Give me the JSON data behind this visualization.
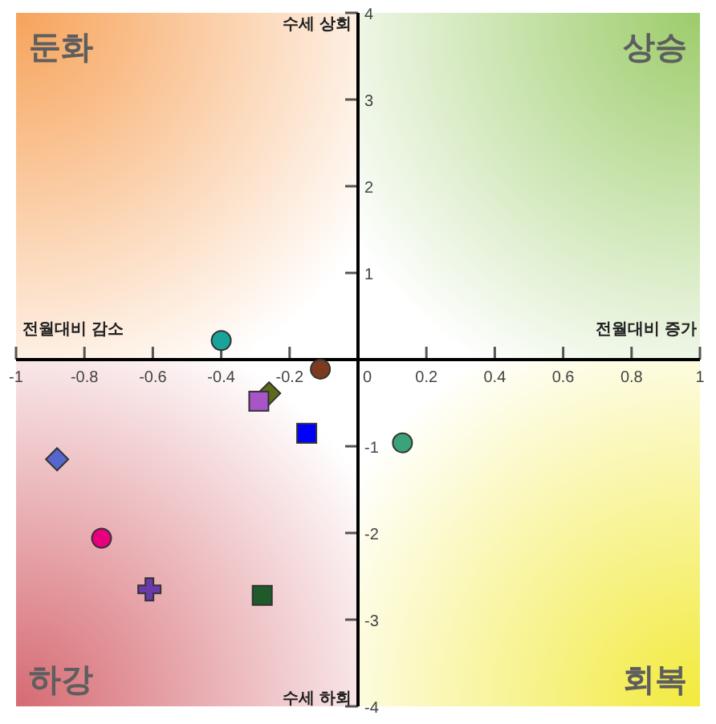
{
  "chart_data": {
    "type": "scatter",
    "annotations": [
      "둔화",
      "상승",
      "하강",
      "회복",
      "수세 상회",
      "수세 하회",
      "전월대비 감소",
      "전월대비 증가"
    ],
    "xlim": [
      -1,
      1
    ],
    "xticks": [
      -1,
      -0.8,
      -0.6,
      -0.4,
      -0.2,
      0,
      0.2,
      0.4,
      0.6,
      0.8,
      1
    ],
    "ylim": [
      -4,
      4
    ],
    "yticks": [
      -4,
      -3,
      -2,
      -1,
      1,
      2,
      3,
      4
    ],
    "series": [
      {
        "color": "#1aa39a",
        "marker": "circle",
        "x": [
          -0.4
        ],
        "values": [
          0.22
        ]
      },
      {
        "color": "#7a3b1e",
        "marker": "circle",
        "x": [
          -0.11
        ],
        "values": [
          -0.11
        ]
      },
      {
        "color": "#5c6b1a",
        "marker": "diamond",
        "x": [
          -0.26
        ],
        "values": [
          -0.39
        ]
      },
      {
        "color": "#a855c8",
        "marker": "square",
        "x": [
          -0.29
        ],
        "values": [
          -0.48
        ]
      },
      {
        "color": "#0000ff",
        "marker": "square",
        "x": [
          -0.15
        ],
        "values": [
          -0.85
        ]
      },
      {
        "color": "#3aa37a",
        "marker": "circle",
        "x": [
          0.13
        ],
        "values": [
          -0.96
        ]
      },
      {
        "color": "#5566cc",
        "marker": "diamond",
        "x": [
          -0.88
        ],
        "values": [
          -1.15
        ]
      },
      {
        "color": "#e6007e",
        "marker": "circle",
        "x": [
          -0.75
        ],
        "values": [
          -2.06
        ]
      },
      {
        "color": "#6a3aa8",
        "marker": "cross",
        "x": [
          -0.61
        ],
        "values": [
          -2.65
        ]
      },
      {
        "color": "#1e5a2a",
        "marker": "square",
        "x": [
          -0.28
        ],
        "values": [
          -2.72
        ]
      }
    ]
  }
}
